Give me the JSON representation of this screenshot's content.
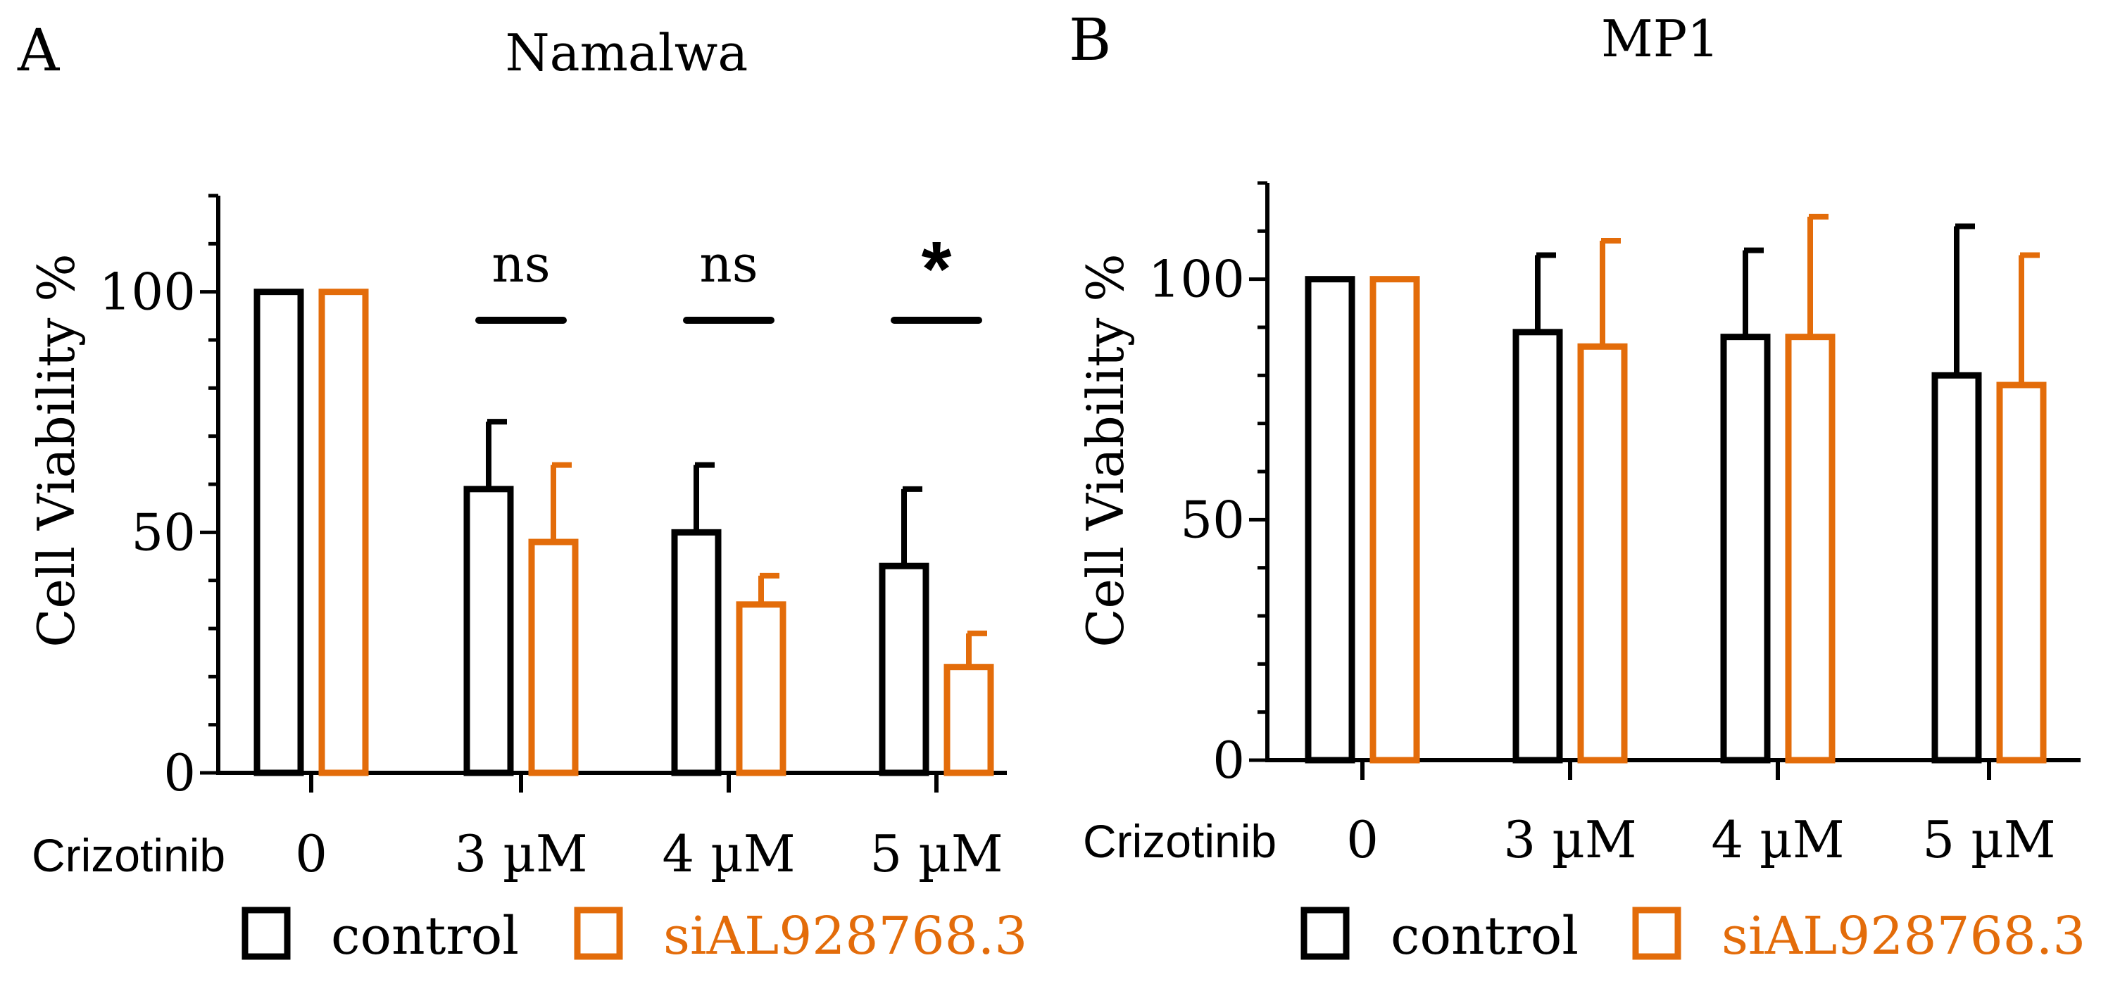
{
  "chart_data": [
    {
      "type": "bar",
      "panel_label": "A",
      "title": "Namalwa",
      "ylabel": "Cell Viability %",
      "xlabel_prefix": "Crizotinib",
      "categories": [
        "0",
        "3 µM",
        "4 µM",
        "5 µM"
      ],
      "ylim": [
        0,
        120
      ],
      "yticks": [
        0,
        50,
        100
      ],
      "ytick_labels": [
        "0",
        "50",
        "100"
      ],
      "series": [
        {
          "name": "control",
          "color": "#000000",
          "values": [
            100,
            59,
            50,
            43
          ],
          "errors": [
            0,
            14,
            14,
            16
          ]
        },
        {
          "name": "siAL928768.3",
          "color": "#E36C0A",
          "values": [
            100,
            48,
            35,
            22
          ],
          "errors": [
            0,
            16,
            6,
            7
          ]
        }
      ],
      "significance": [
        {
          "category_index": 1,
          "label": "ns"
        },
        {
          "category_index": 2,
          "label": "ns"
        },
        {
          "category_index": 3,
          "label": "*"
        }
      ],
      "legend": [
        "control",
        "siAL928768.3"
      ]
    },
    {
      "type": "bar",
      "panel_label": "B",
      "title": "MP1",
      "ylabel": "Cell Viability %",
      "xlabel_prefix": "Crizotinib",
      "categories": [
        "0",
        "3 µM",
        "4 µM",
        "5 µM"
      ],
      "ylim": [
        0,
        120
      ],
      "yticks": [
        0,
        50,
        100
      ],
      "ytick_labels": [
        "0",
        "50",
        "100"
      ],
      "series": [
        {
          "name": "control",
          "color": "#000000",
          "values": [
            100,
            89,
            88,
            80
          ],
          "errors": [
            0,
            16,
            18,
            31
          ]
        },
        {
          "name": "siAL928768.3",
          "color": "#E36C0A",
          "values": [
            100,
            86,
            88,
            78
          ],
          "errors": [
            0,
            22,
            25,
            27
          ]
        }
      ],
      "significance": [],
      "legend": [
        "control",
        "siAL928768.3"
      ]
    }
  ]
}
